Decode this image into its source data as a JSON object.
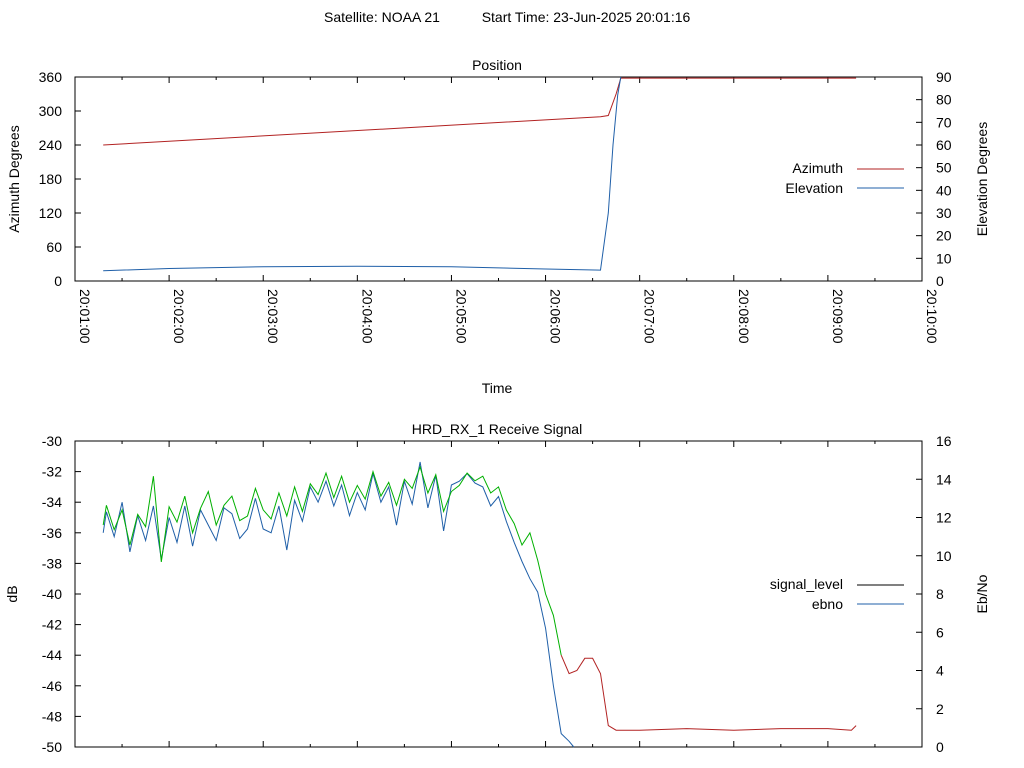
{
  "header": {
    "satellite": "Satellite: NOAA 21",
    "start_time": "Start Time: 23-Jun-2025 20:01:16"
  },
  "colors": {
    "azimuth": "#b22222",
    "elevation": "#1f5fa8",
    "signal_level_strong": "#00b000",
    "signal_level_weak": "#b22222",
    "ebno": "#1f5fa8",
    "legend_signal_level": "#000000"
  },
  "chart_data": [
    {
      "type": "line",
      "title": "Position",
      "xlabel": "Time",
      "ylabel": "Azimuth Degrees",
      "y2label": "Elevation Degrees",
      "xlim": [
        "20:01:00",
        "20:10:00"
      ],
      "x_ticks": [
        "20:01:00",
        "20:02:00",
        "20:03:00",
        "20:04:00",
        "20:05:00",
        "20:06:00",
        "20:07:00",
        "20:08:00",
        "20:09:00",
        "20:10:00"
      ],
      "ylim": [
        0,
        360
      ],
      "y_ticks": [
        "0",
        "60",
        "120",
        "180",
        "240",
        "300",
        "360"
      ],
      "y2lim": [
        0,
        90
      ],
      "y2_ticks": [
        "0",
        "10",
        "20",
        "30",
        "40",
        "50",
        "60",
        "70",
        "80",
        "90"
      ],
      "legend_position": "right",
      "series": [
        {
          "name": "Azimuth",
          "axis": "y",
          "x": [
            "20:01:18",
            "20:06:35",
            "20:06:40",
            "20:06:45",
            "20:06:48",
            "20:07:00",
            "20:09:18"
          ],
          "values": [
            240,
            290,
            292,
            330,
            358,
            358,
            358
          ]
        },
        {
          "name": "Elevation",
          "axis": "y2",
          "x": [
            "20:01:18",
            "20:02:00",
            "20:03:00",
            "20:04:00",
            "20:05:00",
            "20:06:00",
            "20:06:35",
            "20:06:40",
            "20:06:43",
            "20:06:46",
            "20:06:48"
          ],
          "values": [
            4.5,
            5.5,
            6.3,
            6.5,
            6.3,
            5.3,
            4.8,
            30,
            60,
            82,
            90
          ]
        }
      ]
    },
    {
      "type": "line",
      "title": "HRD_RX_1 Receive Signal",
      "xlabel": "",
      "ylabel": "dB",
      "y2label": "Eb/No",
      "xlim": [
        "20:01:00",
        "20:10:00"
      ],
      "ylim": [
        -50,
        -30
      ],
      "y_ticks": [
        "-30",
        "-32",
        "-34",
        "-36",
        "-38",
        "-40",
        "-42",
        "-44",
        "-46",
        "-48",
        "-50"
      ],
      "y2lim": [
        0,
        16
      ],
      "y2_ticks": [
        "0",
        "2",
        "4",
        "6",
        "8",
        "10",
        "12",
        "14",
        "16"
      ],
      "legend_position": "right",
      "series": [
        {
          "name": "signal_level",
          "axis": "y",
          "x": [
            "20:01:18",
            "20:01:20",
            "20:01:25",
            "20:01:30",
            "20:01:35",
            "20:01:40",
            "20:01:45",
            "20:01:50",
            "20:01:55",
            "20:02:00",
            "20:02:05",
            "20:02:10",
            "20:02:15",
            "20:02:20",
            "20:02:25",
            "20:02:30",
            "20:02:35",
            "20:02:40",
            "20:02:45",
            "20:02:50",
            "20:02:55",
            "20:03:00",
            "20:03:05",
            "20:03:10",
            "20:03:15",
            "20:03:20",
            "20:03:25",
            "20:03:30",
            "20:03:35",
            "20:03:40",
            "20:03:45",
            "20:03:50",
            "20:03:55",
            "20:04:00",
            "20:04:05",
            "20:04:10",
            "20:04:15",
            "20:04:20",
            "20:04:25",
            "20:04:30",
            "20:04:35",
            "20:04:40",
            "20:04:45",
            "20:04:50",
            "20:04:55",
            "20:05:00",
            "20:05:05",
            "20:05:10",
            "20:05:15",
            "20:05:20",
            "20:05:25",
            "20:05:30",
            "20:05:35",
            "20:05:40",
            "20:05:45",
            "20:05:50",
            "20:05:55",
            "20:06:00",
            "20:06:05",
            "20:06:10",
            "20:06:15",
            "20:06:20",
            "20:06:25",
            "20:06:30",
            "20:06:35",
            "20:06:40",
            "20:06:45",
            "20:07:00",
            "20:07:30",
            "20:08:00",
            "20:08:30",
            "20:09:00",
            "20:09:15",
            "20:09:18"
          ],
          "values": [
            -35.5,
            -34.2,
            -35.8,
            -34.5,
            -36.8,
            -34.8,
            -35.6,
            -32.3,
            -37.9,
            -34.3,
            -35.3,
            -33.6,
            -36.0,
            -34.4,
            -33.3,
            -35.5,
            -34.2,
            -33.6,
            -35.2,
            -34.9,
            -33.1,
            -34.5,
            -35.1,
            -33.4,
            -34.9,
            -33.0,
            -34.6,
            -32.8,
            -33.5,
            -32.1,
            -33.7,
            -32.3,
            -34.0,
            -32.9,
            -33.8,
            -32.0,
            -33.6,
            -32.7,
            -34.2,
            -32.5,
            -33.1,
            -31.7,
            -33.4,
            -32.2,
            -34.6,
            -33.3,
            -32.9,
            -32.1,
            -32.6,
            -32.3,
            -33.4,
            -33.0,
            -34.5,
            -35.4,
            -36.8,
            -36.0,
            -37.8,
            -40.0,
            -41.4,
            -44.0,
            -45.2,
            -45.0,
            -44.2,
            -44.2,
            -45.2,
            -48.6,
            -48.9,
            -48.9,
            -48.8,
            -48.9,
            -48.8,
            -48.8,
            -48.9,
            -48.6
          ]
        },
        {
          "name": "ebno",
          "axis": "y2",
          "x": [
            "20:01:18",
            "20:01:20",
            "20:01:25",
            "20:01:30",
            "20:01:35",
            "20:01:40",
            "20:01:45",
            "20:01:50",
            "20:01:55",
            "20:02:00",
            "20:02:05",
            "20:02:10",
            "20:02:15",
            "20:02:20",
            "20:02:25",
            "20:02:30",
            "20:02:35",
            "20:02:40",
            "20:02:45",
            "20:02:50",
            "20:02:55",
            "20:03:00",
            "20:03:05",
            "20:03:10",
            "20:03:15",
            "20:03:20",
            "20:03:25",
            "20:03:30",
            "20:03:35",
            "20:03:40",
            "20:03:45",
            "20:03:50",
            "20:03:55",
            "20:04:00",
            "20:04:05",
            "20:04:10",
            "20:04:15",
            "20:04:20",
            "20:04:25",
            "20:04:30",
            "20:04:35",
            "20:04:40",
            "20:04:45",
            "20:04:50",
            "20:04:55",
            "20:05:00",
            "20:05:05",
            "20:05:10",
            "20:05:15",
            "20:05:20",
            "20:05:25",
            "20:05:30",
            "20:05:35",
            "20:05:40",
            "20:05:45",
            "20:05:50",
            "20:05:55",
            "20:06:00",
            "20:06:05",
            "20:06:10",
            "20:06:15",
            "20:06:18"
          ],
          "values": [
            11.2,
            12.3,
            11.0,
            12.8,
            10.2,
            12.1,
            10.8,
            12.6,
            9.8,
            12.0,
            10.7,
            12.6,
            10.5,
            12.4,
            11.6,
            10.8,
            12.5,
            12.2,
            10.9,
            11.4,
            13.0,
            11.4,
            11.2,
            12.6,
            10.3,
            12.9,
            11.8,
            13.6,
            12.8,
            13.9,
            12.6,
            13.7,
            12.1,
            13.3,
            12.4,
            14.3,
            12.8,
            13.6,
            11.6,
            13.9,
            12.7,
            14.9,
            12.5,
            14.2,
            11.3,
            13.7,
            13.9,
            14.3,
            13.8,
            13.6,
            12.6,
            13.1,
            11.8,
            10.7,
            9.7,
            8.8,
            8.1,
            6.2,
            3.2,
            0.7,
            0.3,
            0
          ]
        }
      ]
    }
  ]
}
